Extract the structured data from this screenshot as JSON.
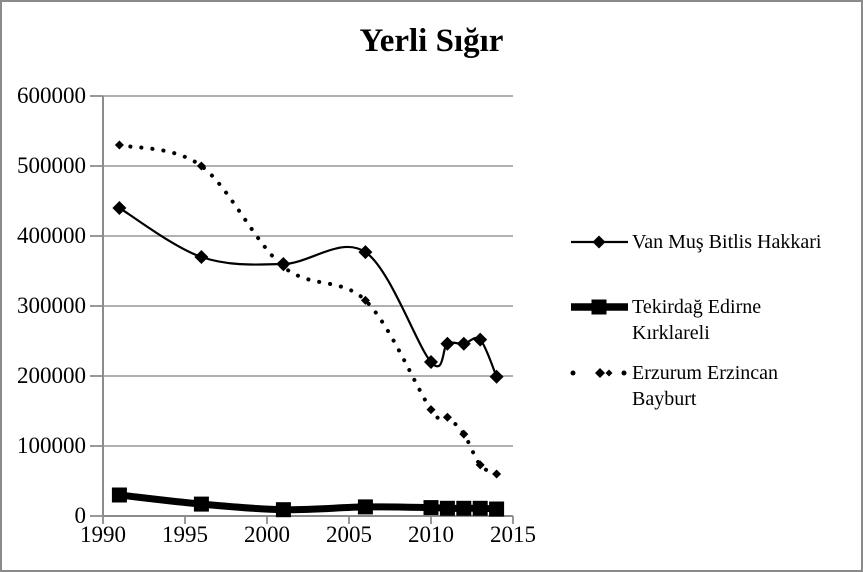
{
  "canvas": {
    "background": "#ffffff",
    "border_color": "#8a8a8a",
    "text_color": "#000000"
  },
  "chart_data": {
    "type": "line",
    "title": "Yerli Sığır",
    "x": [
      1991,
      1996,
      2001,
      2006,
      2010,
      2011,
      2012,
      2013,
      2014
    ],
    "series": [
      {
        "name": "Van Muş Bitlis Hakkari",
        "values": [
          440000,
          370000,
          360000,
          377000,
          220000,
          246000,
          246000,
          252000,
          199000
        ],
        "line_style": "solid",
        "line_width": "thin",
        "marker": "diamond",
        "color": "#000000",
        "smooth": true
      },
      {
        "name": "Tekirdağ Edirne Kırklareli",
        "values": [
          30000,
          17000,
          9000,
          13000,
          12000,
          11000,
          11000,
          11000,
          10000
        ],
        "line_style": "solid",
        "line_width": "thick",
        "marker": "square",
        "color": "#000000",
        "smooth": true
      },
      {
        "name": "Erzurum Erzincan Bayburt",
        "values": [
          530000,
          500000,
          356000,
          308000,
          152000,
          141000,
          117000,
          73000,
          60000
        ],
        "line_style": "dotted",
        "line_width": "medium",
        "marker": "small-diamond",
        "color": "#000000",
        "smooth": true
      }
    ],
    "x_axis": {
      "min": 1990,
      "max": 2015,
      "ticks": [
        1990,
        1995,
        2000,
        2005,
        2010,
        2015
      ],
      "labels": [
        "1990",
        "1995",
        "2000",
        "2005",
        "2010",
        "2015"
      ]
    },
    "y_axis": {
      "min": 0,
      "max": 600000,
      "ticks": [
        0,
        100000,
        200000,
        300000,
        400000,
        500000,
        600000
      ],
      "labels": [
        "0",
        "100000",
        "200000",
        "300000",
        "400000",
        "500000",
        "600000"
      ]
    },
    "grid": "horizontal",
    "grid_color": "#a6a6a6",
    "axis_color": "#8c8c8c",
    "legend_position": "right"
  },
  "legend": [
    {
      "label": "Van Muş Bitlis Hakkari",
      "lines": [
        "Van Muş Bitlis Hakkari"
      ],
      "swatch": "thin-line-diamond"
    },
    {
      "label": "Tekirdağ Edirne Kırklareli",
      "lines": [
        "Tekirdağ Edirne",
        "Kırklareli"
      ],
      "swatch": "thick-line-square"
    },
    {
      "label": "Erzurum Erzincan Bayburt",
      "lines": [
        "Erzurum Erzincan",
        "Bayburt"
      ],
      "swatch": "dotted-line-small-diamond"
    }
  ]
}
